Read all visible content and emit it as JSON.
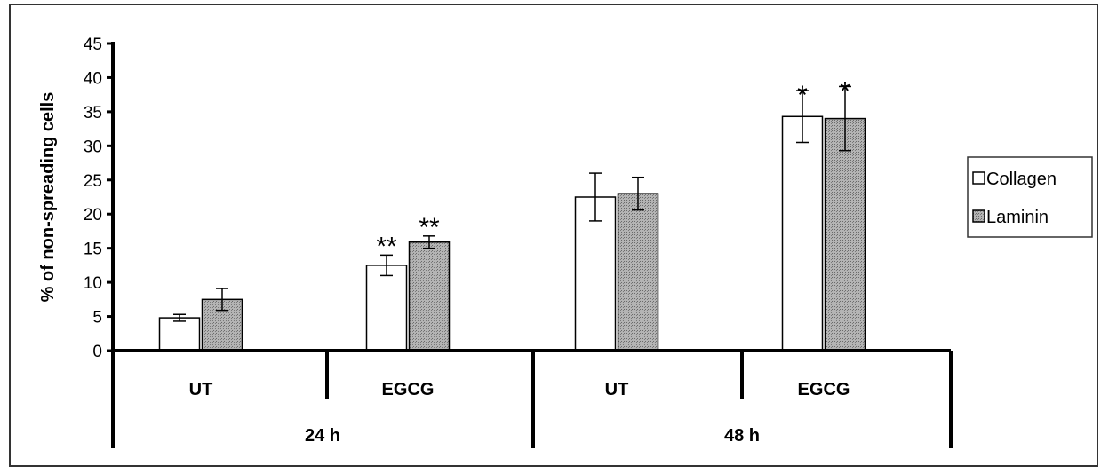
{
  "chart_data": {
    "type": "bar",
    "ylabel": "% of non-spreading cells",
    "ylim": [
      0,
      45
    ],
    "yticks": [
      0,
      5,
      10,
      15,
      20,
      25,
      30,
      35,
      40,
      45
    ],
    "legend_position": "right",
    "groups": [
      {
        "time": "24 h",
        "categories": [
          "UT",
          "EGCG"
        ]
      },
      {
        "time": "48 h",
        "categories": [
          "UT",
          "EGCG"
        ]
      }
    ],
    "categories": [
      "UT",
      "EGCG",
      "UT",
      "EGCG"
    ],
    "series": [
      {
        "name": "Collagen",
        "fill": "#ffffff",
        "values": [
          4.8,
          12.5,
          22.5,
          34.3
        ],
        "errors": [
          0.5,
          1.5,
          3.5,
          3.8
        ],
        "significance": [
          "",
          "**",
          "",
          "*"
        ]
      },
      {
        "name": "Laminin",
        "fill": "#a8a8a8",
        "values": [
          7.5,
          15.9,
          23.0,
          34.0
        ],
        "errors": [
          1.6,
          0.9,
          2.4,
          4.7
        ],
        "significance": [
          "",
          "**",
          "",
          "*"
        ]
      }
    ]
  }
}
